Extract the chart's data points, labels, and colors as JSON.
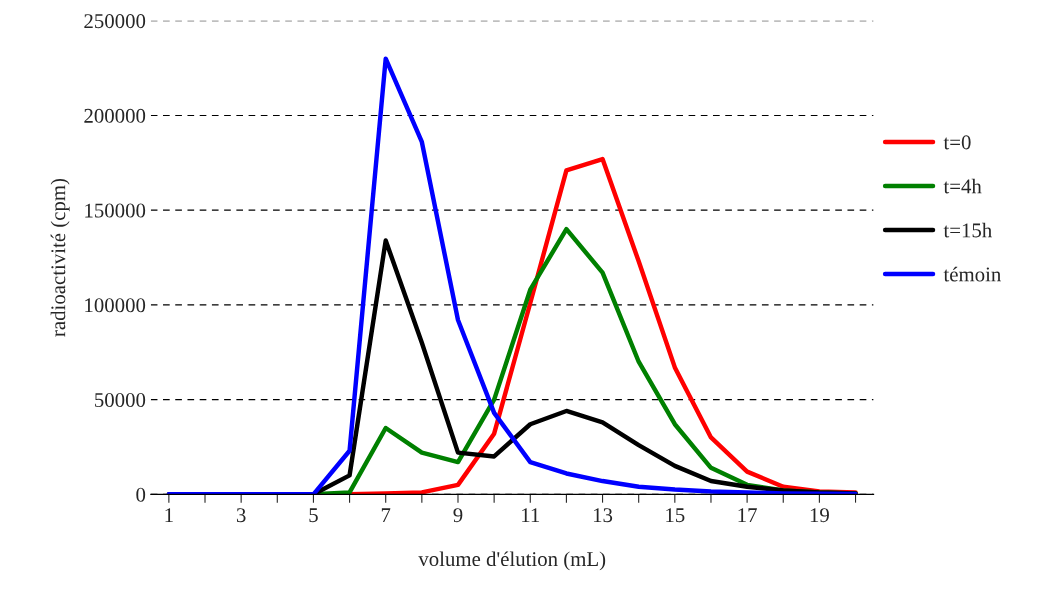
{
  "chart_data": {
    "type": "line",
    "xlabel": "volume d'élution (mL)",
    "ylabel": "radioactivité (cpm)",
    "x": [
      1,
      2,
      3,
      4,
      5,
      6,
      7,
      8,
      9,
      10,
      11,
      12,
      13,
      14,
      15,
      16,
      17,
      18,
      19,
      20
    ],
    "xlim": [
      0.5,
      20.5
    ],
    "xticks": [
      1,
      {
        "value": 2,
        "label": null
      },
      3,
      {
        "value": 4,
        "label": null
      },
      5,
      {
        "value": 6,
        "label": null
      },
      7,
      {
        "value": 8,
        "label": null
      },
      9,
      {
        "value": 10,
        "label": null
      },
      11,
      {
        "value": 12,
        "label": null
      },
      13,
      {
        "value": 14,
        "label": null
      },
      15,
      {
        "value": 16,
        "label": null
      },
      17,
      {
        "value": 18,
        "label": null
      },
      19,
      {
        "value": 20,
        "label": null
      }
    ],
    "ylim": [
      0,
      250000
    ],
    "yticks": [
      0,
      50000,
      100000,
      150000,
      200000,
      250000
    ],
    "grid": "y",
    "legend": "right",
    "marker": "none",
    "line_style": "solid",
    "series": [
      {
        "name": "t=0",
        "color": "#ff0000",
        "values": [
          null,
          null,
          null,
          null,
          0,
          0,
          500,
          1000,
          5000,
          32000,
          101000,
          171000,
          177000,
          123000,
          67000,
          30000,
          12000,
          4000,
          1500,
          1000
        ]
      },
      {
        "name": "t=4h",
        "color": "#008000",
        "values": [
          null,
          null,
          null,
          0,
          0,
          1000,
          35000,
          22000,
          17000,
          50000,
          108000,
          140000,
          117000,
          70000,
          37000,
          14000,
          5000,
          2000,
          1000,
          500
        ]
      },
      {
        "name": "t=15h",
        "color": "#000000",
        "values": [
          0,
          0,
          0,
          0,
          0,
          10000,
          134000,
          80000,
          22000,
          20000,
          37000,
          44000,
          38000,
          26000,
          15000,
          7000,
          4000,
          2000,
          1000,
          500
        ]
      },
      {
        "name": "témoin",
        "color": "#0000ff",
        "values": [
          0,
          0,
          0,
          0,
          0,
          23000,
          230000,
          186000,
          92000,
          43000,
          17000,
          11000,
          7000,
          4000,
          2500,
          1500,
          1000,
          500,
          300,
          200
        ]
      }
    ]
  }
}
